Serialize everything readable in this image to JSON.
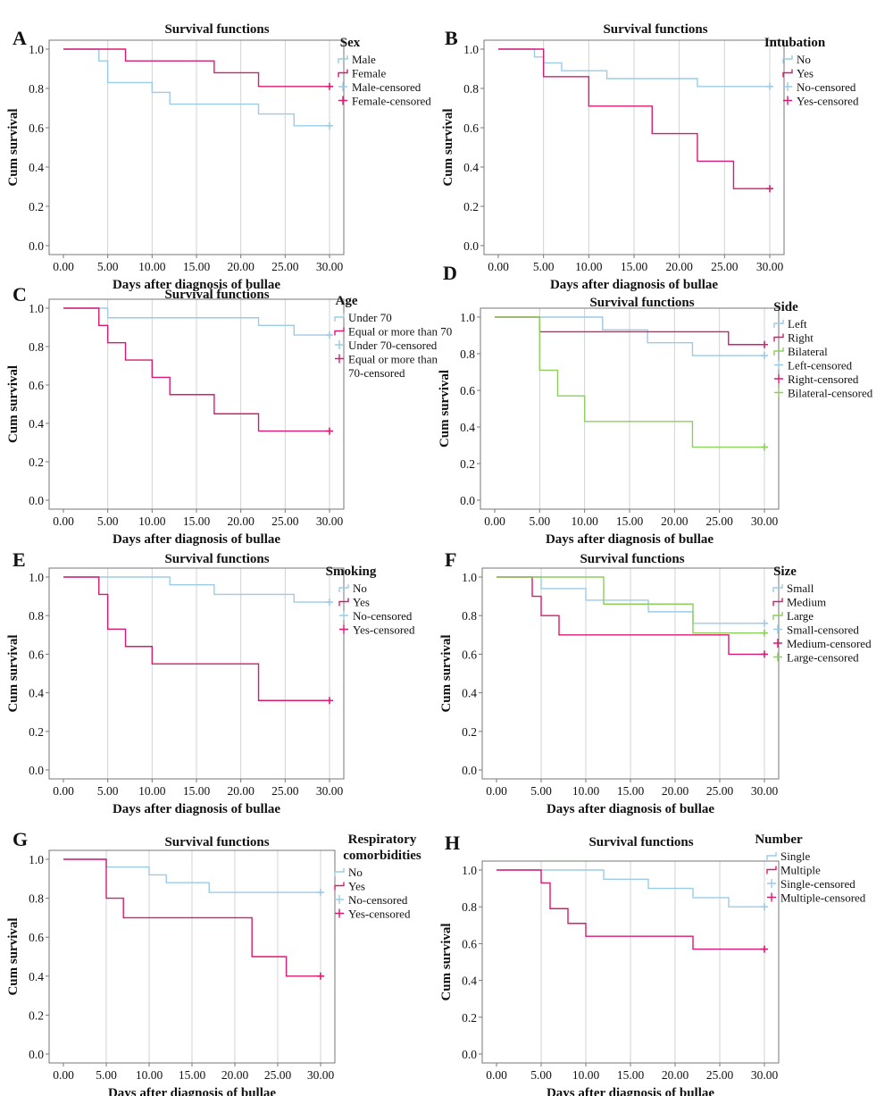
{
  "colors": {
    "blue": "#9ccbe6",
    "pink": "#d81b72",
    "green": "#8ccf5a",
    "grid": "#cfd3d6",
    "axis": "#777777"
  },
  "chart_data": [
    {
      "type": "line",
      "panel": "A",
      "title": "Survival functions",
      "xlabel": "Days after diagnosis of bullae",
      "ylabel": "Cum survival",
      "xlim": [
        0,
        30
      ],
      "ylim": [
        0,
        1.0
      ],
      "xticks": [
        "0.00",
        "5.00",
        "10.00",
        "15.00",
        "20.00",
        "25.00",
        "30.00"
      ],
      "yticks": [
        "0.0",
        "0.2",
        "0.4",
        "0.6",
        "0.8",
        "1.0"
      ],
      "legend_title": "Sex",
      "legend": [
        "Male",
        "Female",
        "Male-censored",
        "Female-censored"
      ],
      "series": [
        {
          "name": "Male",
          "color": "blue",
          "x": [
            0,
            4,
            5,
            10,
            12,
            22,
            26,
            30
          ],
          "y": [
            1.0,
            0.94,
            0.83,
            0.78,
            0.72,
            0.67,
            0.61,
            0.61
          ]
        },
        {
          "name": "Female",
          "color": "pink",
          "x": [
            0,
            7,
            17,
            22,
            30
          ],
          "y": [
            1.0,
            0.94,
            0.88,
            0.81,
            0.81
          ]
        }
      ]
    },
    {
      "type": "line",
      "panel": "B",
      "title": "Survival functions",
      "xlabel": "Days after diagnosis of bullae",
      "ylabel": "Cum survival",
      "xlim": [
        0,
        30
      ],
      "ylim": [
        0,
        1.0
      ],
      "xticks": [
        "0.00",
        "5.00",
        "10.00",
        "15.00",
        "20.00",
        "25.00",
        "30.00"
      ],
      "yticks": [
        "0.0",
        "0.2",
        "0.4",
        "0.6",
        "0.8",
        "1.0"
      ],
      "legend_title": "Intubation",
      "legend": [
        "No",
        "Yes",
        "No-censored",
        "Yes-censored"
      ],
      "series": [
        {
          "name": "No",
          "color": "blue",
          "x": [
            0,
            4,
            5,
            7,
            12,
            22,
            30
          ],
          "y": [
            1.0,
            0.96,
            0.93,
            0.89,
            0.85,
            0.81,
            0.81
          ]
        },
        {
          "name": "Yes",
          "color": "pink",
          "x": [
            0,
            5,
            10,
            17,
            22,
            26,
            30
          ],
          "y": [
            1.0,
            0.86,
            0.71,
            0.57,
            0.43,
            0.29,
            0.29
          ]
        }
      ]
    },
    {
      "type": "line",
      "panel": "C",
      "title": "Survival functions",
      "xlabel": "Days after diagnosis of bullae",
      "ylabel": "Cum survival",
      "xlim": [
        0,
        30
      ],
      "ylim": [
        0,
        1.0
      ],
      "xticks": [
        "0.00",
        "5.00",
        "10.00",
        "15.00",
        "20.00",
        "25.00",
        "30.00"
      ],
      "yticks": [
        "0.0",
        "0.2",
        "0.4",
        "0.6",
        "0.8",
        "1.0"
      ],
      "legend_title": "Age",
      "legend": [
        "Under 70",
        "Equal or more than 70",
        "Under 70-censored",
        "Equal or more than",
        "70-censored"
      ],
      "series": [
        {
          "name": "Under 70",
          "color": "blue",
          "x": [
            0,
            5,
            22,
            26,
            30
          ],
          "y": [
            1.0,
            0.95,
            0.91,
            0.86,
            0.86
          ]
        },
        {
          "name": "Equal or more than 70",
          "color": "pink",
          "x": [
            0,
            4,
            5,
            7,
            10,
            12,
            17,
            22,
            30
          ],
          "y": [
            1.0,
            0.91,
            0.82,
            0.73,
            0.64,
            0.55,
            0.45,
            0.36,
            0.36
          ]
        }
      ]
    },
    {
      "type": "line",
      "panel": "D",
      "title": "Survival functions",
      "xlabel": "Days after diagnosis of bullae",
      "ylabel": "Cum survival",
      "xlim": [
        0,
        30
      ],
      "ylim": [
        0,
        1.0
      ],
      "xticks": [
        "0.00",
        "5.00",
        "10.00",
        "15.00",
        "20.00",
        "25.00",
        "30.00"
      ],
      "yticks": [
        "0.0",
        "0.2",
        "0.4",
        "0.6",
        "0.8",
        "1.0"
      ],
      "legend_title": "Side",
      "legend": [
        "Left",
        "Right",
        "Bilateral",
        "Left-censored",
        "Right-censored",
        "Bilateral-censored"
      ],
      "series": [
        {
          "name": "Left",
          "color": "blue",
          "x": [
            0,
            12,
            17,
            22,
            30
          ],
          "y": [
            1.0,
            0.93,
            0.86,
            0.79,
            0.79
          ]
        },
        {
          "name": "Right",
          "color": "pink",
          "x": [
            0,
            5,
            26,
            30
          ],
          "y": [
            1.0,
            0.92,
            0.85,
            0.85
          ]
        },
        {
          "name": "Bilateral",
          "color": "green",
          "x": [
            0,
            5,
            7,
            10,
            22,
            30
          ],
          "y": [
            1.0,
            0.71,
            0.57,
            0.43,
            0.29,
            0.29
          ]
        }
      ]
    },
    {
      "type": "line",
      "panel": "E",
      "title": "Survival functions",
      "xlabel": "Days after diagnosis of bullae",
      "ylabel": "Cum survival",
      "xlim": [
        0,
        30
      ],
      "ylim": [
        0,
        1.0
      ],
      "xticks": [
        "0.00",
        "5.00",
        "10.00",
        "15.00",
        "20.00",
        "25.00",
        "30.00"
      ],
      "yticks": [
        "0.0",
        "0.2",
        "0.4",
        "0.6",
        "0.8",
        "1.0"
      ],
      "legend_title": "Smoking",
      "legend": [
        "No",
        "Yes",
        "No-censored",
        "Yes-censored"
      ],
      "series": [
        {
          "name": "No",
          "color": "blue",
          "x": [
            0,
            12,
            17,
            26,
            30
          ],
          "y": [
            1.0,
            0.96,
            0.91,
            0.87,
            0.87
          ]
        },
        {
          "name": "Yes",
          "color": "pink",
          "x": [
            0,
            4,
            5,
            7,
            10,
            22,
            30
          ],
          "y": [
            1.0,
            0.91,
            0.73,
            0.64,
            0.55,
            0.36,
            0.36
          ]
        }
      ]
    },
    {
      "type": "line",
      "panel": "F",
      "title": "Survival functions",
      "xlabel": "Days after diagnosis of bullae",
      "ylabel": "Cum survival",
      "xlim": [
        0,
        30
      ],
      "ylim": [
        0,
        1.0
      ],
      "xticks": [
        "0.00",
        "5.00",
        "10.00",
        "15.00",
        "20.00",
        "25.00",
        "30.00"
      ],
      "yticks": [
        "0.0",
        "0.2",
        "0.4",
        "0.6",
        "0.8",
        "1.0"
      ],
      "legend_title": "Size",
      "legend": [
        "Small",
        "Medium",
        "Large",
        "Small-censored",
        "Medium-censored",
        "Large-censored"
      ],
      "series": [
        {
          "name": "Small",
          "color": "blue",
          "x": [
            0,
            5,
            10,
            17,
            22,
            30
          ],
          "y": [
            1.0,
            0.94,
            0.88,
            0.82,
            0.76,
            0.76
          ]
        },
        {
          "name": "Medium",
          "color": "pink",
          "x": [
            0,
            4,
            5,
            7,
            26,
            30
          ],
          "y": [
            1.0,
            0.9,
            0.8,
            0.7,
            0.6,
            0.6
          ]
        },
        {
          "name": "Large",
          "color": "green",
          "x": [
            0,
            12,
            22,
            30
          ],
          "y": [
            1.0,
            0.86,
            0.71,
            0.71
          ]
        }
      ]
    },
    {
      "type": "line",
      "panel": "G",
      "title": "Survival functions",
      "xlabel": "Days after diagnosis of bullae",
      "ylabel": "Cum survival",
      "xlim": [
        0,
        30
      ],
      "ylim": [
        0,
        1.0
      ],
      "xticks": [
        "0.00",
        "5.00",
        "10.00",
        "15.00",
        "20.00",
        "25.00",
        "30.00"
      ],
      "yticks": [
        "0.0",
        "0.2",
        "0.4",
        "0.6",
        "0.8",
        "1.0"
      ],
      "legend_title": "Respiratory comorbidities",
      "legend": [
        "No",
        "Yes",
        "No-censored",
        "Yes-censored"
      ],
      "series": [
        {
          "name": "No",
          "color": "blue",
          "x": [
            0,
            5,
            10,
            12,
            17,
            30
          ],
          "y": [
            1.0,
            0.96,
            0.92,
            0.88,
            0.83,
            0.83
          ]
        },
        {
          "name": "Yes",
          "color": "pink",
          "x": [
            0,
            5,
            7,
            22,
            26,
            30
          ],
          "y": [
            1.0,
            0.8,
            0.7,
            0.5,
            0.4,
            0.4
          ]
        }
      ]
    },
    {
      "type": "line",
      "panel": "H",
      "title": "Survival functions",
      "xlabel": "Days after diagnosis of bullae",
      "ylabel": "Cum survival",
      "xlim": [
        0,
        30
      ],
      "ylim": [
        0,
        1.0
      ],
      "xticks": [
        "0.00",
        "5.00",
        "10.00",
        "15.00",
        "20.00",
        "25.00",
        "30.00"
      ],
      "yticks": [
        "0.0",
        "0.2",
        "0.4",
        "0.6",
        "0.8",
        "1.0"
      ],
      "legend_title": "Number",
      "legend": [
        "Single",
        "Multiple",
        "Single-censored",
        "Multiple-censored"
      ],
      "series": [
        {
          "name": "Single",
          "color": "blue",
          "x": [
            0,
            12,
            17,
            22,
            26,
            30
          ],
          "y": [
            1.0,
            0.95,
            0.9,
            0.85,
            0.8,
            0.8
          ]
        },
        {
          "name": "Multiple",
          "color": "pink",
          "x": [
            0,
            5,
            6,
            8,
            10,
            22,
            30
          ],
          "y": [
            1.0,
            0.93,
            0.79,
            0.71,
            0.64,
            0.57,
            0.57
          ]
        }
      ]
    }
  ]
}
